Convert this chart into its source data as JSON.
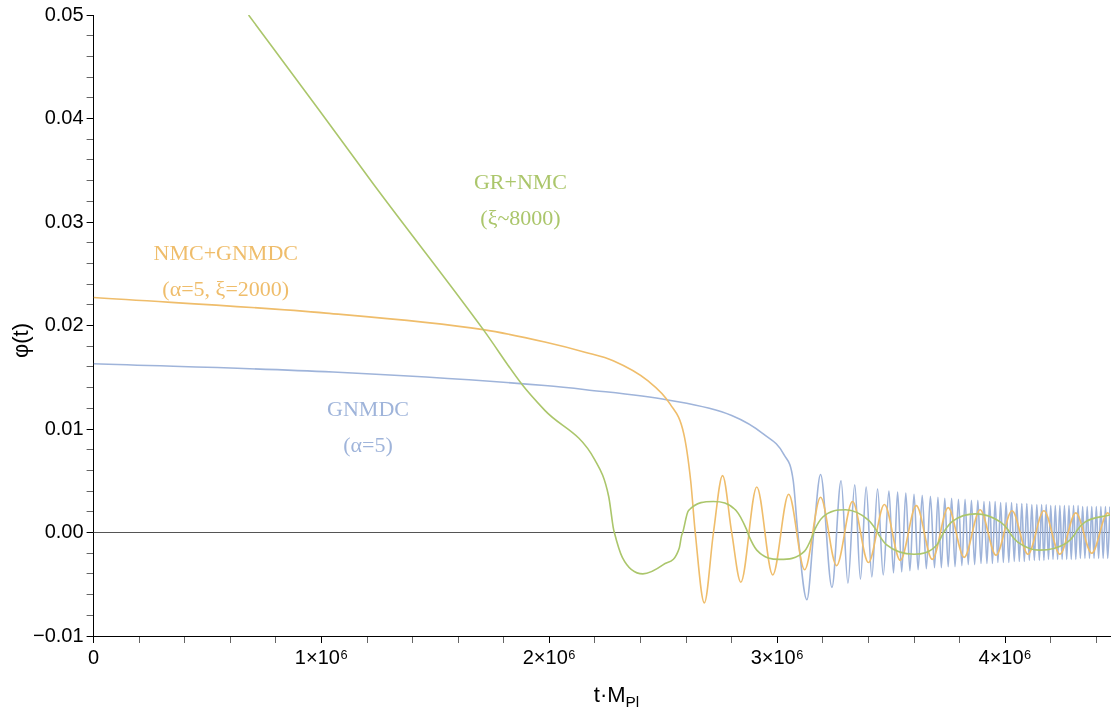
{
  "chart_data": {
    "type": "line",
    "xlabel": "t·M$_{Pl}$",
    "ylabel": "φ(t)",
    "xlim": [
      0,
      4460000.0
    ],
    "ylim": [
      -0.01,
      0.05
    ],
    "xticks": [
      0,
      {
        "value": 200000.0,
        "label": null
      },
      {
        "value": 400000.0,
        "label": null
      },
      {
        "value": 600000.0,
        "label": null
      },
      {
        "value": 800000.0,
        "label": null
      },
      {
        "value": 1000000.0,
        "label": "1×10⁶"
      },
      {
        "value": 1200000.0,
        "label": null
      },
      {
        "value": 1400000.0,
        "label": null
      },
      {
        "value": 1600000.0,
        "label": null
      },
      {
        "value": 1800000.0,
        "label": null
      },
      {
        "value": 2000000.0,
        "label": "2×10⁶"
      },
      {
        "value": 2200000.0,
        "label": null
      },
      {
        "value": 2400000.0,
        "label": null
      },
      {
        "value": 2600000.0,
        "label": null
      },
      {
        "value": 2800000.0,
        "label": null
      },
      {
        "value": 3000000.0,
        "label": "3×10⁶"
      },
      {
        "value": 3200000.0,
        "label": null
      },
      {
        "value": 3400000.0,
        "label": null
      },
      {
        "value": 3600000.0,
        "label": null
      },
      {
        "value": 3800000.0,
        "label": null
      },
      {
        "value": 4000000.0,
        "label": "4×10⁶"
      },
      {
        "value": 4200000.0,
        "label": null
      },
      {
        "value": 4400000.0,
        "label": null
      }
    ],
    "yticks": [
      {
        "value": -0.01,
        "label": "−0.01"
      },
      {
        "value": -0.008,
        "label": null
      },
      {
        "value": -0.006,
        "label": null
      },
      {
        "value": -0.004,
        "label": null
      },
      {
        "value": -0.002,
        "label": null
      },
      {
        "value": 0,
        "label": "0.00"
      },
      {
        "value": 0.002,
        "label": null
      },
      {
        "value": 0.004,
        "label": null
      },
      {
        "value": 0.006,
        "label": null
      },
      {
        "value": 0.008,
        "label": null
      },
      0.01,
      {
        "value": 0.012,
        "label": null
      },
      {
        "value": 0.014,
        "label": null
      },
      {
        "value": 0.016,
        "label": null
      },
      {
        "value": 0.018,
        "label": null
      },
      0.02,
      {
        "value": 0.022,
        "label": null
      },
      {
        "value": 0.024,
        "label": null
      },
      {
        "value": 0.026,
        "label": null
      },
      {
        "value": 0.028,
        "label": null
      },
      0.03,
      {
        "value": 0.032,
        "label": null
      },
      {
        "value": 0.034,
        "label": null
      },
      {
        "value": 0.036,
        "label": null
      },
      {
        "value": 0.038,
        "label": null
      },
      0.04,
      {
        "value": 0.042,
        "label": null
      },
      {
        "value": 0.044,
        "label": null
      },
      {
        "value": 0.046,
        "label": null
      },
      {
        "value": 0.048,
        "label": null
      },
      0.05
    ],
    "grid": false,
    "legend": false,
    "marker": "none",
    "line_style": "solid",
    "ref_lines": [
      {
        "axis": "y",
        "value": 0,
        "color": "#555555"
      }
    ],
    "series": [
      {
        "name": "GR+NMC\n(ξ~8000)",
        "color": "#abc66b",
        "x": [
          680000.0,
          990000.0,
          1230000.0,
          1710000.0,
          1880000.0,
          1980000.0,
          2200000.0,
          2260000.0,
          2280000.0,
          2285000.0,
          2320000.0,
          2410000.0,
          2500000.0,
          2570000.0,
          2580000.0,
          2585000.0,
          2610000.0,
          2720000.0,
          2820000.0,
          2865000.0,
          2875000.0,
          2910000.0,
          3010000.0,
          3120000.0,
          3155000.0,
          3165000.0,
          3200000.0,
          3300000.0,
          3400000.0,
          3435000.0,
          3445000.0,
          3480000.0,
          3600000.0,
          3700000.0,
          3725000.0,
          3735000.0,
          3770000.0,
          3870000.0,
          3980000.0,
          4015000.0,
          4025000.0,
          4060000.0,
          4150000.0,
          4270000.0,
          4305000.0,
          4315000.0,
          4350000.0,
          4460000.0
        ],
        "values": [
          0.05,
          0.0408,
          0.0336,
          0.0196,
          0.0143,
          0.0118,
          0.007,
          0.0035,
          0.0005,
          0,
          -0.0024,
          -0.004,
          -0.0031,
          -0.0015,
          -0.0003,
          0,
          0.0021,
          0.003,
          0.0021,
          0.0003,
          -0.0003,
          -0.0017,
          -0.0026,
          -0.0018,
          -0.0003,
          0.0003,
          0.0015,
          0.0022,
          0.0012,
          0.0002,
          -0.0002,
          -0.0012,
          -0.0021,
          -0.0012,
          -0.0002,
          0.0002,
          0.0011,
          0.0018,
          0.001,
          0.0002,
          -0.0002,
          -0.001,
          -0.0017,
          -0.001,
          -0.0002,
          0.0002,
          0.001,
          0.0017
        ]
      },
      {
        "name": "NMC+GNMDC\n(α=5, ξ=2000)",
        "color": "#efbd6b",
        "x": [
          0,
          1020000.0,
          1710000.0,
          1980000.0,
          2160000.0,
          2280000.0,
          2430000.0,
          2530000.0,
          2590000.0,
          2620000.0,
          2640000.0,
          2680000.0,
          2720000.0,
          2760000.0,
          2800000.0,
          2840000.0,
          2910000.0,
          2980000.0,
          3050000.0,
          3120000.0,
          3190000.0,
          3260000.0,
          3330000.0,
          3400000.0,
          3470000.0,
          3540000.0,
          3610000.0,
          3680000.0,
          3750000.0,
          3820000.0,
          3890000.0,
          3960000.0,
          4030000.0,
          4100000.0,
          4170000.0,
          4240000.0,
          4310000.0,
          4380000.0,
          4450000.0,
          4460000.0
        ],
        "values": [
          0.0227,
          0.0212,
          0.0196,
          0.0184,
          0.0174,
          0.0166,
          0.0147,
          0.0124,
          0.0095,
          0.005,
          0,
          -0.0068,
          0,
          0.0055,
          0,
          -0.0048,
          0.0044,
          -0.0041,
          0.0037,
          -0.0036,
          0.0034,
          -0.0032,
          0.003,
          -0.0029,
          0.0027,
          -0.0027,
          0.0026,
          -0.0026,
          0.0024,
          -0.0024,
          0.0022,
          -0.0022,
          0.0021,
          -0.0021,
          0.0021,
          -0.0021,
          0.0019,
          -0.002,
          0.0019,
          0.0017
        ]
      },
      {
        "name": "GNMDC\n(α=5)",
        "color": "#9fb4da",
        "x": [
          0,
          1050000.0,
          1980000.0,
          2160000.0,
          2520000.0,
          2800000.0,
          2940000.0,
          3030000.0,
          3070000.0,
          3090000.0,
          3130000.0,
          3160000.0,
          3190000.0,
          3240000.0,
          3280000.0,
          3310000.0,
          3340000.0,
          3365000.0,
          3390000.0,
          3415000.0,
          3440000.0,
          3465000.0,
          3490000.0,
          3510000.0,
          3528000.0,
          3546000.0,
          3564000.0,
          3582000.0,
          3600000.0,
          3618000.0,
          3636000.0,
          3654000.0,
          3672000.0,
          3690000.0,
          3705000.0,
          3720000.0,
          3735000.0,
          3750000.0,
          3765000.0,
          3780000.0,
          3795000.0,
          3810000.0,
          3824000.0,
          3838000.0,
          3852000.0,
          3866000.0,
          3880000.0,
          3894000.0,
          3907000.0,
          3920000.0,
          3932000.0,
          3944000.0,
          3956000.0,
          3968000.0,
          3980000.0,
          3992000.0,
          4004000.0,
          4016000.0,
          4028000.0,
          4040000.0,
          4051000.0,
          4062000.0,
          4073000.0,
          4084000.0,
          4095000.0,
          4106000.0,
          4117000.0,
          4128000.0,
          4139000.0,
          4150000.0,
          4160000.0,
          4170000.0,
          4180000.0,
          4190000.0,
          4200000.0,
          4210000.0,
          4220000.0,
          4230000.0,
          4240000.0,
          4250000.0,
          4260000.0,
          4270000.0,
          4280000.0,
          4290000.0,
          4300000.0,
          4310000.0,
          4320000.0,
          4330000.0,
          4340000.0,
          4350000.0,
          4360000.0,
          4370000.0,
          4380000.0,
          4390000.0,
          4400000.0,
          4410000.0,
          4420000.0,
          4430000.0,
          4440000.0,
          4450000.0,
          4460000.0
        ],
        "values": [
          0.0163,
          0.0155,
          0.0142,
          0.0138,
          0.0128,
          0.0113,
          0.0095,
          0.0075,
          0.005,
          0,
          -0.0065,
          0,
          0.0056,
          -0.0053,
          0.005,
          -0.0049,
          0.0046,
          -0.0045,
          0.0044,
          -0.0043,
          0.0042,
          -0.0041,
          0.004,
          -0.0039,
          0.0039,
          -0.0038,
          0.0038,
          -0.0037,
          0.0037,
          -0.0036,
          0.0036,
          -0.0035,
          0.0035,
          -0.0034,
          0.0034,
          -0.0034,
          0.0033,
          -0.0033,
          0.0033,
          -0.0033,
          0.0032,
          -0.0032,
          0.0032,
          -0.0031,
          0.0031,
          -0.0031,
          0.0031,
          -0.003,
          0.003,
          -0.003,
          0.003,
          -0.003,
          0.003,
          -0.0029,
          0.0029,
          -0.0029,
          0.0029,
          -0.0029,
          0.0029,
          -0.0028,
          0.0028,
          -0.0028,
          0.0028,
          -0.0028,
          0.0028,
          -0.0027,
          0.0027,
          -0.0027,
          0.0027,
          -0.0027,
          0.0027,
          -0.0027,
          0.0027,
          -0.0026,
          0.0026,
          -0.0026,
          0.0026,
          -0.0026,
          0.0026,
          -0.0026,
          0.0026,
          -0.0026,
          0.0026,
          -0.0026,
          0.0026,
          -0.0026,
          0.0026,
          -0.0025,
          0.0025,
          -0.0025,
          0.0025,
          -0.0025,
          0.0025,
          -0.0025,
          0.0025,
          -0.0025,
          0.0025,
          -0.0025,
          0.0025,
          -0.0025,
          0.0025
        ]
      }
    ]
  }
}
